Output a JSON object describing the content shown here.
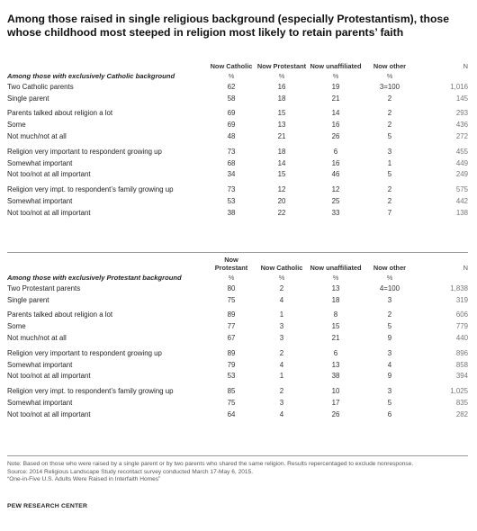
{
  "title": "Among those raised in single religious background (especially Protestantism), those whose childhood most steeped in religion most likely to retain parents’ faith",
  "catholic": {
    "columns": [
      "Now Catholic",
      "Now Protestant",
      "Now unaffiliated",
      "Now other",
      "N"
    ],
    "section_label": "Among those with exclusively Catholic background",
    "pct_row": [
      "%",
      "%",
      "%",
      "%"
    ],
    "groups": [
      [
        {
          "label": "Two Catholic parents",
          "v": [
            "62",
            "16",
            "19",
            "3=100",
            "1,016"
          ]
        },
        {
          "label": "Single parent",
          "v": [
            "58",
            "18",
            "21",
            "2",
            "145"
          ]
        }
      ],
      [
        {
          "label": "Parents talked about religion a lot",
          "v": [
            "69",
            "15",
            "14",
            "2",
            "293"
          ]
        },
        {
          "label": "Some",
          "v": [
            "69",
            "13",
            "16",
            "2",
            "436"
          ]
        },
        {
          "label": "Not much/not at all",
          "v": [
            "48",
            "21",
            "26",
            "5",
            "272"
          ]
        }
      ],
      [
        {
          "label": "Religion very important to respondent growing up",
          "v": [
            "73",
            "18",
            "6",
            "3",
            "455"
          ]
        },
        {
          "label": "Somewhat important",
          "v": [
            "68",
            "14",
            "16",
            "1",
            "449"
          ]
        },
        {
          "label": "Not too/not at all important",
          "v": [
            "34",
            "15",
            "46",
            "5",
            "249"
          ]
        }
      ],
      [
        {
          "label": "Religion very impt. to respondent’s family growing up",
          "v": [
            "73",
            "12",
            "12",
            "2",
            "575"
          ]
        },
        {
          "label": "Somewhat important",
          "v": [
            "53",
            "20",
            "25",
            "2",
            "442"
          ]
        },
        {
          "label": "Not too/not at all important",
          "v": [
            "38",
            "22",
            "33",
            "7",
            "138"
          ]
        }
      ]
    ]
  },
  "protestant": {
    "columns": [
      "Now Protestant",
      "Now Catholic",
      "Now unaffiliated",
      "Now other",
      "N"
    ],
    "section_label": "Among those with exclusively Protestant background",
    "pct_row": [
      "%",
      "%",
      "%",
      "%"
    ],
    "groups": [
      [
        {
          "label": "Two Protestant parents",
          "v": [
            "80",
            "2",
            "13",
            "4=100",
            "1,838"
          ]
        },
        {
          "label": "Single parent",
          "v": [
            "75",
            "4",
            "18",
            "3",
            "319"
          ]
        }
      ],
      [
        {
          "label": "Parents talked about religion a lot",
          "v": [
            "89",
            "1",
            "8",
            "2",
            "606"
          ]
        },
        {
          "label": "Some",
          "v": [
            "77",
            "3",
            "15",
            "5",
            "779"
          ]
        },
        {
          "label": "Not much/not at all",
          "v": [
            "67",
            "3",
            "21",
            "9",
            "440"
          ]
        }
      ],
      [
        {
          "label": "Religion very important to respondent growing up",
          "v": [
            "89",
            "2",
            "6",
            "3",
            "896"
          ]
        },
        {
          "label": "Somewhat important",
          "v": [
            "79",
            "4",
            "13",
            "4",
            "858"
          ]
        },
        {
          "label": "Not too/not at all important",
          "v": [
            "53",
            "1",
            "38",
            "9",
            "394"
          ]
        }
      ],
      [
        {
          "label": "Religion very impt. to respondent’s family growing up",
          "v": [
            "85",
            "2",
            "10",
            "3",
            "1,025"
          ]
        },
        {
          "label": "Somewhat important",
          "v": [
            "75",
            "3",
            "17",
            "5",
            "835"
          ]
        },
        {
          "label": "Not too/not at all important",
          "v": [
            "64",
            "4",
            "26",
            "6",
            "282"
          ]
        }
      ]
    ]
  },
  "notes": {
    "note": "Note: Based on those who were raised by a single parent or by two parents who shared the same religion. Results repercentaged to exclude nonresponse.",
    "source": "Source: 2014 Religious Landscape Study recontact survey conducted March 17-May 6, 2015.",
    "report": "“One-in-Five U.S. Adults Were Raised in Interfaith Homes”"
  },
  "footer": "PEW RESEARCH CENTER"
}
